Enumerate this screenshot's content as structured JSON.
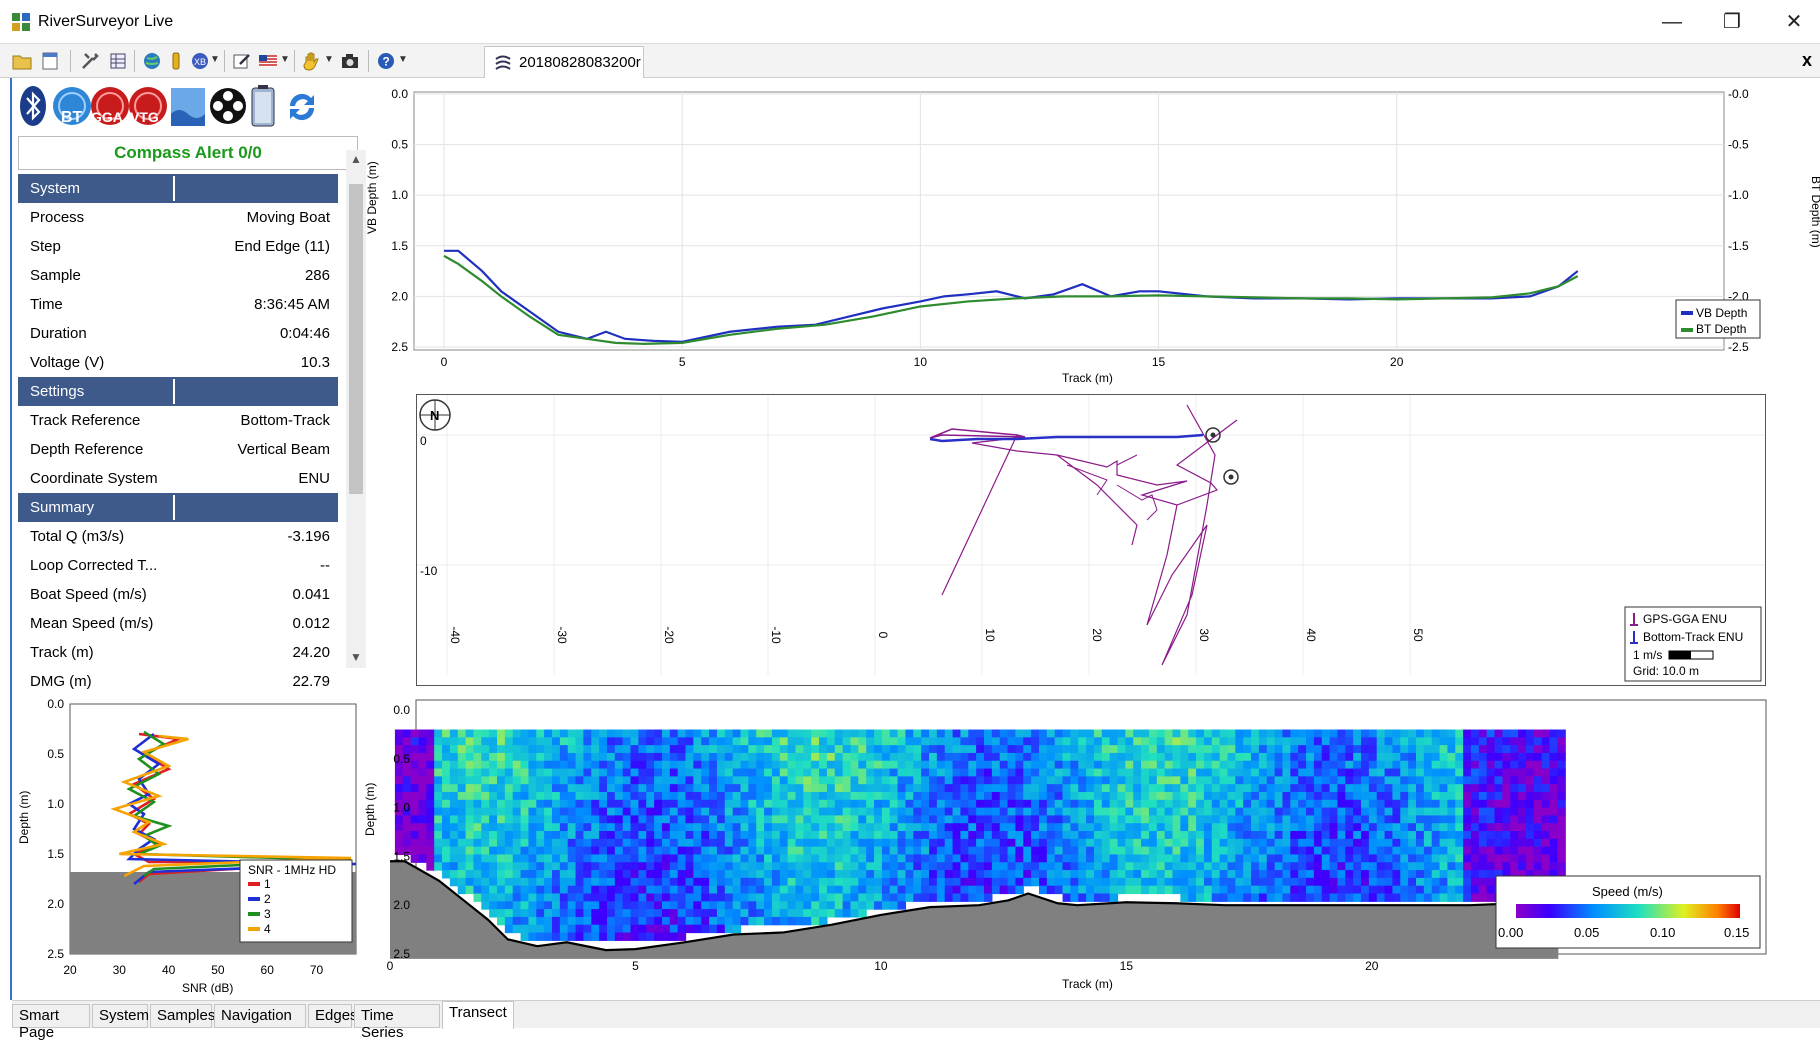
{
  "app": {
    "title": "RiverSurveyor Live"
  },
  "window_controls": {
    "minimize": "—",
    "restore": "❐",
    "close": "✕"
  },
  "toolbar": {
    "file_tab": "20180828083200r",
    "close_tab": "x"
  },
  "status_icons": [
    "bluetooth-icon",
    "bt-icon",
    "gga-icon",
    "vtg-icon",
    "depth-icon",
    "reel-icon",
    "battery-icon",
    "refresh-icon"
  ],
  "status_icon_labels": {
    "bt": "BT",
    "gga": "GGA",
    "vtg": "VTG"
  },
  "compass_alert": "Compass Alert 0/0",
  "properties": [
    {
      "type": "header",
      "label": "System"
    },
    {
      "label": "Process",
      "value": "Moving Boat"
    },
    {
      "label": "Step",
      "value": "End Edge (11)"
    },
    {
      "label": "Sample",
      "value": "286"
    },
    {
      "label": "Time",
      "value": "8:36:45 AM"
    },
    {
      "label": "Duration",
      "value": "0:04:46"
    },
    {
      "label": "Voltage (V)",
      "value": "10.3"
    },
    {
      "type": "header",
      "label": "Settings"
    },
    {
      "label": "Track Reference",
      "value": "Bottom-Track"
    },
    {
      "label": "Depth Reference",
      "value": "Vertical Beam"
    },
    {
      "label": "Coordinate System",
      "value": "ENU"
    },
    {
      "type": "header",
      "label": "Summary"
    },
    {
      "label": "Total Q (m3/s)",
      "value": "-3.196"
    },
    {
      "label": "Loop Corrected T...",
      "value": "--"
    },
    {
      "label": "Boat Speed (m/s)",
      "value": "0.041"
    },
    {
      "label": "Mean Speed (m/s)",
      "value": "0.012"
    },
    {
      "label": "Track (m)",
      "value": "24.20"
    },
    {
      "label": "DMG (m)",
      "value": "22.79"
    }
  ],
  "depth_plot": {
    "ylabel_left": "VB Depth (m)",
    "ylabel_right": "BT Depth (m)",
    "xlabel": "Track (m)",
    "yticks": [
      "0.0",
      "0.5",
      "1.0",
      "1.5",
      "2.0",
      "2.5"
    ],
    "xticks": [
      "0",
      "5",
      "10",
      "15",
      "20"
    ],
    "legend": [
      "VB Depth",
      "BT Depth"
    ],
    "colors": {
      "vb": "#1f2fbf",
      "bt": "#2e8b2e"
    }
  },
  "chart_data": [
    {
      "type": "line",
      "xlabel": "Track (m)",
      "ylabel": "VB Depth (m)",
      "xlim": [
        0,
        24.2
      ],
      "ylim": [
        2.5,
        0
      ],
      "series": [
        {
          "name": "VB Depth",
          "x": [
            0,
            0.3,
            0.8,
            1.2,
            1.8,
            2.4,
            3,
            3.4,
            3.8,
            4.4,
            5,
            6,
            7,
            7.8,
            8.5,
            9.2,
            10,
            10.5,
            11,
            11.6,
            12.2,
            12.8,
            13.4,
            14,
            14.6,
            15,
            16,
            17,
            18,
            19,
            20,
            21,
            22,
            22.8,
            23.4,
            23.8
          ],
          "y": [
            1.55,
            1.55,
            1.75,
            1.95,
            2.15,
            2.35,
            2.42,
            2.35,
            2.42,
            2.44,
            2.45,
            2.35,
            2.3,
            2.28,
            2.2,
            2.12,
            2.05,
            2.0,
            1.98,
            1.95,
            2.02,
            1.98,
            1.88,
            2.0,
            1.95,
            1.95,
            2.0,
            2.02,
            2.02,
            2.03,
            2.02,
            2.02,
            2.02,
            2.0,
            1.9,
            1.75
          ]
        },
        {
          "name": "BT Depth",
          "x": [
            0,
            0.3,
            0.8,
            1.2,
            1.8,
            2.4,
            3,
            3.6,
            4.2,
            5,
            6,
            7,
            8,
            9,
            10,
            11,
            12,
            13,
            14,
            15,
            16,
            17,
            18,
            19,
            20,
            21,
            22,
            22.8,
            23.4,
            23.8
          ],
          "y": [
            1.6,
            1.68,
            1.85,
            2.0,
            2.2,
            2.38,
            2.42,
            2.46,
            2.47,
            2.46,
            2.38,
            2.32,
            2.28,
            2.2,
            2.1,
            2.05,
            2.02,
            2.0,
            2.0,
            1.99,
            2.0,
            2.01,
            2.02,
            2.02,
            2.03,
            2.02,
            2.01,
            1.97,
            1.9,
            1.8
          ]
        }
      ]
    },
    {
      "type": "line",
      "xlabel": "SNR (dB)",
      "ylabel": "Depth (m)",
      "xlim": [
        20,
        78
      ],
      "ylim": [
        2.5,
        0
      ],
      "title": "SNR - 1MHz HD",
      "series": [
        {
          "name": "1",
          "x": [
            34,
            42,
            35,
            40,
            33,
            37,
            32,
            36,
            34,
            38,
            33,
            36,
            77,
            36,
            34
          ],
          "y": [
            0.3,
            0.35,
            0.5,
            0.65,
            0.8,
            0.95,
            1.1,
            1.2,
            1.3,
            1.4,
            1.5,
            1.58,
            1.58,
            1.7,
            1.78
          ]
        },
        {
          "name": "2",
          "x": [
            37,
            33,
            38,
            34,
            36,
            32,
            35,
            33,
            37,
            34,
            32,
            78,
            36,
            33
          ],
          "y": [
            0.3,
            0.45,
            0.6,
            0.75,
            0.9,
            1.0,
            1.1,
            1.25,
            1.35,
            1.45,
            1.55,
            1.6,
            1.68,
            1.8
          ]
        },
        {
          "name": "3",
          "x": [
            35,
            39,
            34,
            38,
            32,
            37,
            33,
            40,
            35,
            38,
            34,
            77,
            37,
            35
          ],
          "y": [
            0.28,
            0.4,
            0.55,
            0.7,
            0.85,
            0.98,
            1.12,
            1.22,
            1.32,
            1.42,
            1.5,
            1.56,
            1.65,
            1.72
          ]
        },
        {
          "name": "4",
          "x": [
            38,
            44,
            35,
            40,
            31,
            38,
            29,
            36,
            33,
            39,
            30,
            77,
            35,
            31
          ],
          "y": [
            0.32,
            0.35,
            0.48,
            0.62,
            0.78,
            0.92,
            1.05,
            1.18,
            1.28,
            1.4,
            1.5,
            1.54,
            1.62,
            1.72
          ]
        }
      ]
    },
    {
      "type": "heatmap",
      "xlabel": "Track (m)",
      "ylabel": "Depth (m)",
      "xlim": [
        0,
        24.2
      ],
      "ylim": [
        2.5,
        0
      ],
      "colorbar": {
        "title": "Speed (m/s)",
        "min": 0.0,
        "max": 0.15,
        "ticks": [
          "0.00",
          "0.05",
          "0.10",
          "0.15"
        ]
      },
      "bottom_x": [
        0,
        0.3,
        1,
        1.5,
        2,
        2.4,
        3,
        3.6,
        4.4,
        5,
        6,
        7,
        8,
        9,
        10,
        11,
        12,
        12.6,
        13,
        13.6,
        14,
        15,
        16,
        17,
        18,
        19,
        20,
        21,
        22,
        23,
        23.8
      ],
      "bottom_y": [
        1.55,
        1.55,
        1.75,
        1.95,
        2.15,
        2.35,
        2.42,
        2.38,
        2.46,
        2.45,
        2.38,
        2.3,
        2.28,
        2.2,
        2.1,
        2.02,
        2.0,
        1.95,
        1.88,
        1.98,
        2.0,
        1.97,
        1.98,
        2.0,
        2.0,
        2.0,
        2.0,
        2.0,
        2.0,
        1.98,
        1.78
      ]
    }
  ],
  "snr_plot": {
    "ylabel": "Depth (m)",
    "xlabel": "SNR (dB)",
    "yticks": [
      "0.0",
      "0.5",
      "1.0",
      "1.5",
      "2.0",
      "2.5"
    ],
    "xticks": [
      "20",
      "30",
      "40",
      "50",
      "60",
      "70"
    ],
    "legend_title": "SNR - 1MHz HD",
    "legend": [
      "1",
      "2",
      "3",
      "4"
    ],
    "colors": [
      "#e0201f",
      "#1f2fd6",
      "#1f8f1f",
      "#f5a300"
    ]
  },
  "track_plot": {
    "yticks": [
      "0",
      "-10"
    ],
    "xticks": [
      "-40",
      "-30",
      "-20",
      "-10",
      "0",
      "10",
      "20",
      "30",
      "40",
      "50"
    ],
    "north_label": "N",
    "legend": [
      "GPS-GGA ENU",
      "Bottom-Track ENU"
    ],
    "scale_label": "1 m/s",
    "grid_label": "Grid: 10.0 m",
    "colors": {
      "gga": "#8b1a8b",
      "bt": "#2830c8"
    }
  },
  "contour_plot": {
    "ylabel": "Depth (m)",
    "xlabel": "Track (m)",
    "yticks": [
      "0.0",
      "0.5",
      "1.0",
      "1.5",
      "2.0",
      "2.5"
    ],
    "xticks": [
      "0",
      "5",
      "10",
      "15",
      "20"
    ],
    "colorbar_title": "Speed (m/s)",
    "colorbar_ticks": [
      "0.00",
      "0.05",
      "0.10",
      "0.15"
    ]
  },
  "bottom_tabs": [
    "Smart Page",
    "System",
    "Samples",
    "Navigation",
    "Edges",
    "Time Series",
    "Transect"
  ]
}
